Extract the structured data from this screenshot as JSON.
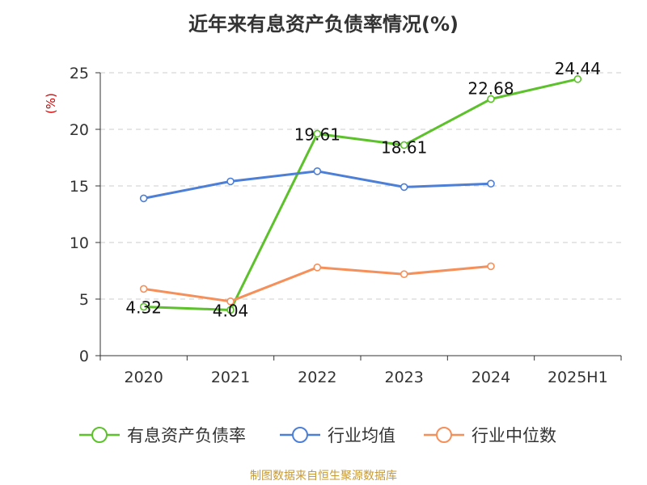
{
  "chart_data": {
    "type": "line",
    "title": "近年来有息资产负债率情况(%)",
    "ylabel": "(%)",
    "xlabel": "",
    "categories": [
      "2020",
      "2021",
      "2022",
      "2023",
      "2024",
      "2025H1"
    ],
    "ylim": [
      0,
      25
    ],
    "yticks": [
      0,
      5,
      10,
      15,
      20,
      25
    ],
    "grid": true,
    "legend_position": "bottom",
    "series": [
      {
        "name": "有息资产负债率",
        "color": "#5cc12b",
        "values": [
          4.32,
          4.04,
          19.61,
          18.61,
          22.68,
          24.44
        ],
        "labels": [
          "4.32",
          "4.04",
          "19.61",
          "18.61",
          "22.68",
          "24.44"
        ]
      },
      {
        "name": "行业均值",
        "color": "#4d7fd6",
        "values": [
          13.9,
          15.4,
          16.3,
          14.9,
          15.2,
          null
        ]
      },
      {
        "name": "行业中位数",
        "color": "#f5905a",
        "values": [
          5.9,
          4.8,
          7.8,
          7.2,
          7.9,
          null
        ]
      }
    ]
  },
  "source": "制图数据来自恒生聚源数据库"
}
